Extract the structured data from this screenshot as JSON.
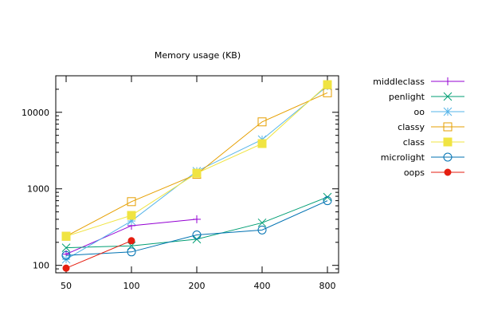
{
  "chart_data": {
    "type": "line",
    "title": "Memory usage (KB)",
    "xlabel": "",
    "ylabel": "",
    "x_scale": "log",
    "y_scale": "log",
    "categories": [
      "50",
      "100",
      "200",
      "400",
      "800"
    ],
    "x": [
      50,
      100,
      200,
      400,
      800
    ],
    "xlim": [
      50,
      800
    ],
    "ylim": [
      80,
      30000
    ],
    "y_ticks": [
      100,
      1000,
      10000
    ],
    "y_tick_labels": [
      "100",
      "1000",
      "10000"
    ],
    "legend_position": "outside-right",
    "grid": false,
    "series": [
      {
        "name": "middleclass",
        "marker": "plus",
        "color": "#9400d3",
        "values": [
          140,
          330,
          400,
          null,
          null
        ]
      },
      {
        "name": "penlight",
        "marker": "cross",
        "color": "#009e73",
        "values": [
          170,
          180,
          220,
          360,
          780
        ]
      },
      {
        "name": "oo",
        "marker": "star",
        "color": "#56b4e9",
        "values": [
          120,
          380,
          1700,
          4400,
          22000
        ]
      },
      {
        "name": "classy",
        "marker": "square-open",
        "color": "#e69f00",
        "values": [
          240,
          680,
          1550,
          7500,
          18000
        ]
      },
      {
        "name": "class",
        "marker": "square-filled",
        "color": "#f0e442",
        "values": [
          240,
          450,
          1600,
          3900,
          23000
        ]
      },
      {
        "name": "microlight",
        "marker": "circle-open",
        "color": "#0072b2",
        "values": [
          135,
          150,
          250,
          290,
          700
        ]
      },
      {
        "name": "oops",
        "marker": "circle-filled",
        "color": "#e51e10",
        "values": [
          92,
          210,
          null,
          null,
          null
        ]
      }
    ]
  }
}
